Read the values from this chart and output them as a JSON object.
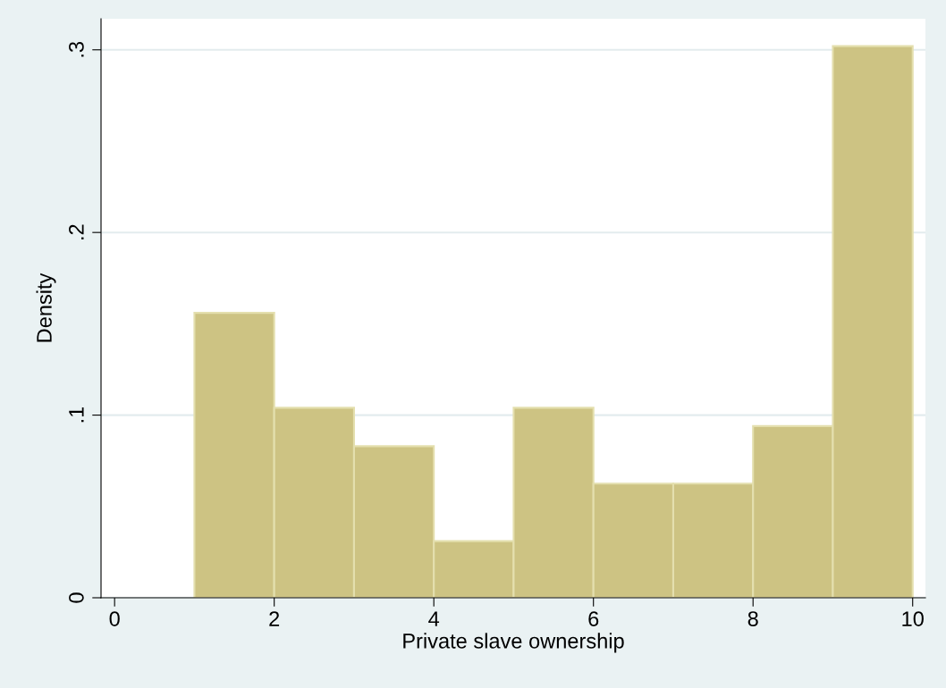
{
  "chart_data": {
    "type": "histogram",
    "xlabel": "Private slave ownership",
    "ylabel": "Density",
    "bins": [
      1,
      2,
      3,
      4,
      5,
      6,
      7,
      8,
      9,
      10
    ],
    "values": [
      0.156,
      0.104,
      0.083,
      0.031,
      0.104,
      0.0625,
      0.0625,
      0.094,
      0.302
    ],
    "color": "#cdc383",
    "xlim": [
      -0.17,
      10.16
    ],
    "ylim": [
      0,
      0.317
    ],
    "xticks": [
      0,
      2,
      4,
      6,
      8,
      10
    ],
    "yticks": [
      {
        "value": 0,
        "label": "0"
      },
      {
        "value": 0.1,
        "label": ".1"
      },
      {
        "value": 0.2,
        "label": ".2"
      },
      {
        "value": 0.3,
        "label": ".3"
      }
    ],
    "grid": "y",
    "legend": false
  }
}
